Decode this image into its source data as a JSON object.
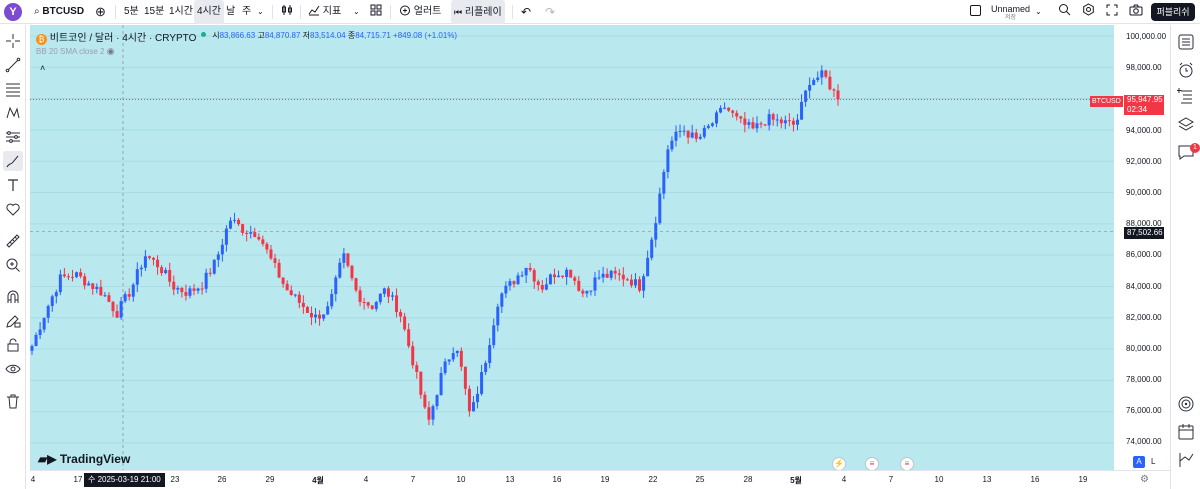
{
  "topbar": {
    "logo": "Y",
    "symbol": "BTCUSD",
    "intervals": [
      "5분",
      "15분",
      "1시간",
      "4시간",
      "날",
      "주"
    ],
    "active_interval": "4시간",
    "indicators_label": "지표",
    "alert_label": "얼러트",
    "replay_label": "리플레이",
    "layout_name": "Unnamed",
    "layout_sub": "저장",
    "publish_label": "퍼블리쉬"
  },
  "legend": {
    "title": "비트코인 / 달러 · 4시간 · CRYPTO",
    "open_label": "시",
    "open": "83,866.63",
    "high_label": "고",
    "high": "84,870.87",
    "low_label": "저",
    "low": "83,514.04",
    "close_label": "종",
    "close": "84,715.71",
    "change": "+849.08 (+1.01%)",
    "sma_label": "BB 20 SMA close 2"
  },
  "price_axis": {
    "labels": [
      "100,000.00",
      "98,000.00",
      "94,000.00",
      "92,000.00",
      "90,000.00",
      "88,000.00",
      "86,000.00",
      "84,000.00",
      "82,000.00",
      "80,000.00",
      "78,000.00",
      "76,000.00",
      "74,000.00"
    ],
    "last_price": "95,947.95",
    "last_countdown": "02:34",
    "ticker_tag": "BTCUSD",
    "crosshair_price": "87,502.66"
  },
  "time_axis": {
    "labels": [
      "4",
      "17",
      "23",
      "26",
      "29",
      "4월",
      "4",
      "7",
      "10",
      "13",
      "16",
      "19",
      "22",
      "25",
      "28",
      "5월",
      "4",
      "7",
      "10",
      "13",
      "16",
      "19"
    ],
    "cursor_time": "수 2025-03-19   21:00",
    "scale_mode": "A",
    "log_label": "L"
  },
  "watermark": "TradingView",
  "right_badge": "1",
  "colors": {
    "background": "#b9e8ef",
    "up": "#2962ff",
    "down": "#f23645",
    "last_price": "#f23645"
  },
  "chart_data": {
    "type": "candlestick",
    "symbol": "BTCUSD",
    "interval": "4h",
    "ylim": [
      73500,
      100500
    ],
    "x_ticks": [
      "4",
      "17",
      "23",
      "26",
      "29",
      "4월",
      "4",
      "7",
      "10",
      "13",
      "16",
      "19",
      "22",
      "25",
      "28",
      "5월",
      "4",
      "7",
      "10",
      "13",
      "16",
      "19"
    ],
    "close_path_approx": [
      80200,
      82500,
      84500,
      84800,
      84200,
      83600,
      82300,
      83800,
      86000,
      85300,
      84000,
      83600,
      84100,
      85600,
      88300,
      87600,
      87400,
      85500,
      83800,
      82900,
      82000,
      82600,
      86000,
      83500,
      82700,
      83800,
      82400,
      79000,
      75200,
      78500,
      80500,
      75600,
      79000,
      83300,
      84300,
      85400,
      83900,
      84900,
      85000,
      83500,
      84600,
      84700,
      84600,
      84000,
      87800,
      93000,
      94100,
      93300,
      94300,
      95500,
      94500,
      94000,
      94700,
      94500,
      94300,
      97200,
      97500,
      95948
    ],
    "last": 95947.95,
    "crosshair_price": 87502.66
  }
}
